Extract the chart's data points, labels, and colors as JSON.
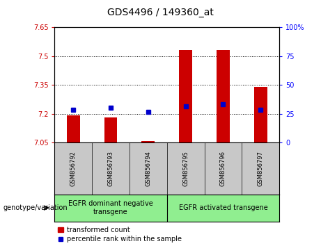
{
  "title": "GDS4496 / 149360_at",
  "samples": [
    "GSM856792",
    "GSM856793",
    "GSM856794",
    "GSM856795",
    "GSM856796",
    "GSM856797"
  ],
  "bar_values": [
    7.19,
    7.18,
    7.06,
    7.53,
    7.53,
    7.34
  ],
  "bar_bottom": 7.05,
  "percentile_values": [
    7.22,
    7.23,
    7.21,
    7.24,
    7.25,
    7.22
  ],
  "ylim_left": [
    7.05,
    7.65
  ],
  "ylim_right": [
    0,
    100
  ],
  "yticks_left": [
    7.05,
    7.2,
    7.35,
    7.5,
    7.65
  ],
  "yticks_right": [
    0,
    25,
    50,
    75,
    100
  ],
  "ytick_labels_right": [
    "0",
    "25",
    "50",
    "75",
    "100%"
  ],
  "bar_color": "#cc0000",
  "percentile_color": "#0000cc",
  "group1_label": "EGFR dominant negative\ntransgene",
  "group2_label": "EGFR activated transgene",
  "genotype_label": "genotype/variation",
  "legend_bar_label": "transformed count",
  "legend_pct_label": "percentile rank within the sample",
  "background_color": "#ffffff",
  "plot_bg_color": "#ffffff",
  "group_bg_color": "#90EE90",
  "xticklabel_bg": "#c8c8c8",
  "hgrid_at": [
    7.2,
    7.35,
    7.5
  ],
  "title_fontsize": 10,
  "tick_fontsize": 7,
  "sample_fontsize": 6,
  "group_fontsize": 7,
  "legend_fontsize": 7,
  "genotype_fontsize": 7
}
